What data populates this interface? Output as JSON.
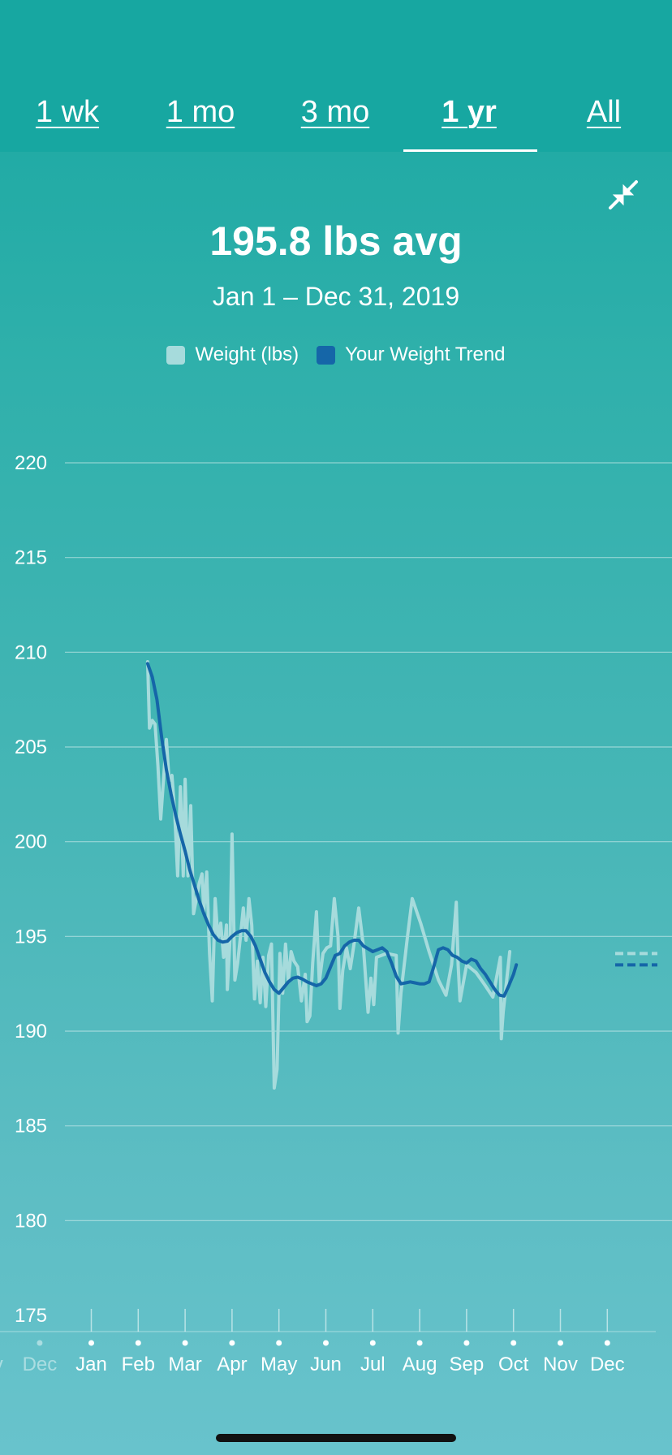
{
  "tabs": [
    {
      "label": "1 wk",
      "active": false
    },
    {
      "label": "1 mo",
      "active": false
    },
    {
      "label": "3 mo",
      "active": false
    },
    {
      "label": "1 yr",
      "active": true
    },
    {
      "label": "All",
      "active": false
    }
  ],
  "header": {
    "title": "195.8 lbs avg",
    "subtitle": "Jan 1 – Dec 31, 2019",
    "collapse_icon": "collapse-arrows-icon"
  },
  "legend": [
    {
      "label": "Weight (lbs)",
      "color": "#a6dbdc"
    },
    {
      "label": "Your Weight Trend",
      "color": "#1566a8"
    }
  ],
  "chart_data": {
    "type": "line",
    "ylim": [
      175,
      220
    ],
    "yticks": [
      220,
      215,
      210,
      205,
      200,
      195,
      190,
      185,
      180,
      175
    ],
    "xticks": [
      {
        "label": "ov",
        "x": -1.1,
        "faded": true
      },
      {
        "label": "Dec",
        "x": -0.1,
        "faded": true
      },
      {
        "label": "Jan",
        "x": 1,
        "faded": false
      },
      {
        "label": "Feb",
        "x": 2,
        "faded": false
      },
      {
        "label": "Mar",
        "x": 3,
        "faded": false
      },
      {
        "label": "Apr",
        "x": 4,
        "faded": false
      },
      {
        "label": "May",
        "x": 5,
        "faded": false
      },
      {
        "label": "Jun",
        "x": 6,
        "faded": false
      },
      {
        "label": "Jul",
        "x": 7,
        "faded": false
      },
      {
        "label": "Aug",
        "x": 8,
        "faded": false
      },
      {
        "label": "Sep",
        "x": 9,
        "faded": false
      },
      {
        "label": "Oct",
        "x": 10,
        "faded": false
      },
      {
        "label": "Nov",
        "x": 11,
        "faded": false
      },
      {
        "label": "Dec",
        "x": 12,
        "faded": false
      }
    ],
    "series": [
      {
        "name": "Weight (lbs)",
        "color": "#a6dbdc",
        "points": [
          [
            2.2,
            209.5
          ],
          [
            2.24,
            206
          ],
          [
            2.3,
            206.4
          ],
          [
            2.36,
            206.2
          ],
          [
            2.42,
            204
          ],
          [
            2.48,
            201.2
          ],
          [
            2.54,
            203.3
          ],
          [
            2.6,
            205.4
          ],
          [
            2.66,
            203.2
          ],
          [
            2.72,
            203.5
          ],
          [
            2.78,
            201.4
          ],
          [
            2.84,
            198.2
          ],
          [
            2.9,
            202.9
          ],
          [
            2.96,
            198.2
          ],
          [
            3.0,
            203.3
          ],
          [
            3.06,
            198.2
          ],
          [
            3.12,
            201.9
          ],
          [
            3.18,
            196.2
          ],
          [
            3.24,
            197
          ],
          [
            3.3,
            197.8
          ],
          [
            3.36,
            198.3
          ],
          [
            3.4,
            196.3
          ],
          [
            3.46,
            198.4
          ],
          [
            3.52,
            194.1
          ],
          [
            3.58,
            191.6
          ],
          [
            3.64,
            197
          ],
          [
            3.7,
            194.9
          ],
          [
            3.76,
            195.7
          ],
          [
            3.82,
            193.9
          ],
          [
            3.88,
            195.6
          ],
          [
            3.9,
            192.2
          ],
          [
            3.96,
            195
          ],
          [
            4.0,
            200.4
          ],
          [
            4.06,
            192.7
          ],
          [
            4.12,
            193.6
          ],
          [
            4.18,
            195
          ],
          [
            4.24,
            196.5
          ],
          [
            4.3,
            194.8
          ],
          [
            4.36,
            197
          ],
          [
            4.42,
            195.6
          ],
          [
            4.48,
            191.7
          ],
          [
            4.54,
            193.7
          ],
          [
            4.6,
            191.5
          ],
          [
            4.66,
            193.9
          ],
          [
            4.72,
            191.3
          ],
          [
            4.78,
            194
          ],
          [
            4.84,
            194.6
          ],
          [
            4.9,
            187
          ],
          [
            4.96,
            188
          ],
          [
            5.02,
            194.1
          ],
          [
            5.08,
            192
          ],
          [
            5.14,
            194.6
          ],
          [
            5.2,
            192.6
          ],
          [
            5.26,
            194.2
          ],
          [
            5.32,
            193.7
          ],
          [
            5.4,
            193.4
          ],
          [
            5.48,
            191.6
          ],
          [
            5.56,
            193
          ],
          [
            5.6,
            190.5
          ],
          [
            5.66,
            190.8
          ],
          [
            5.72,
            193.6
          ],
          [
            5.8,
            196.3
          ],
          [
            5.86,
            192.6
          ],
          [
            5.94,
            194.1
          ],
          [
            6.02,
            194.4
          ],
          [
            6.1,
            194.5
          ],
          [
            6.18,
            197
          ],
          [
            6.26,
            195
          ],
          [
            6.3,
            191.2
          ],
          [
            6.36,
            193.2
          ],
          [
            6.44,
            194.4
          ],
          [
            6.52,
            193.3
          ],
          [
            6.6,
            194.6
          ],
          [
            6.7,
            196.5
          ],
          [
            6.8,
            194.5
          ],
          [
            6.9,
            191
          ],
          [
            6.96,
            192.8
          ],
          [
            7.02,
            191.4
          ],
          [
            7.08,
            193.9
          ],
          [
            7.3,
            194.1
          ],
          [
            7.5,
            194
          ],
          [
            7.54,
            189.9
          ],
          [
            7.6,
            192
          ],
          [
            7.74,
            195
          ],
          [
            7.84,
            197
          ],
          [
            8.02,
            195.7
          ],
          [
            8.2,
            194.2
          ],
          [
            8.4,
            192.7
          ],
          [
            8.56,
            191.9
          ],
          [
            8.68,
            193.5
          ],
          [
            8.78,
            196.8
          ],
          [
            8.82,
            193.5
          ],
          [
            8.86,
            191.6
          ],
          [
            9.0,
            193.5
          ],
          [
            9.2,
            193.1
          ],
          [
            9.4,
            192.4
          ],
          [
            9.56,
            191.8
          ],
          [
            9.72,
            193.9
          ],
          [
            9.74,
            189.6
          ],
          [
            9.78,
            191
          ],
          [
            9.92,
            194.2
          ]
        ]
      },
      {
        "name": "Your Weight Trend",
        "color": "#1566a8",
        "points": [
          [
            2.2,
            209.4
          ],
          [
            2.3,
            208.7
          ],
          [
            2.4,
            207.5
          ],
          [
            2.5,
            205.5
          ],
          [
            2.6,
            203.8
          ],
          [
            2.7,
            202.5
          ],
          [
            2.8,
            201.4
          ],
          [
            2.9,
            200.4
          ],
          [
            3.0,
            199.5
          ],
          [
            3.1,
            198.5
          ],
          [
            3.2,
            197.7
          ],
          [
            3.3,
            196.9
          ],
          [
            3.4,
            196.2
          ],
          [
            3.5,
            195.6
          ],
          [
            3.6,
            195.1
          ],
          [
            3.7,
            194.8
          ],
          [
            3.8,
            194.7
          ],
          [
            3.9,
            194.75
          ],
          [
            4.0,
            195
          ],
          [
            4.1,
            195.2
          ],
          [
            4.2,
            195.3
          ],
          [
            4.3,
            195.3
          ],
          [
            4.4,
            195
          ],
          [
            4.5,
            194.5
          ],
          [
            4.6,
            193.8
          ],
          [
            4.7,
            193.1
          ],
          [
            4.8,
            192.6
          ],
          [
            4.9,
            192.2
          ],
          [
            5.0,
            192
          ],
          [
            5.1,
            192.3
          ],
          [
            5.2,
            192.6
          ],
          [
            5.3,
            192.8
          ],
          [
            5.4,
            192.85
          ],
          [
            5.5,
            192.75
          ],
          [
            5.6,
            192.6
          ],
          [
            5.7,
            192.5
          ],
          [
            5.8,
            192.4
          ],
          [
            5.9,
            192.5
          ],
          [
            6.0,
            192.8
          ],
          [
            6.1,
            193.4
          ],
          [
            6.2,
            194
          ],
          [
            6.3,
            194.1
          ],
          [
            6.4,
            194.5
          ],
          [
            6.5,
            194.7
          ],
          [
            6.6,
            194.8
          ],
          [
            6.7,
            194.8
          ],
          [
            6.8,
            194.5
          ],
          [
            6.9,
            194.35
          ],
          [
            7.0,
            194.2
          ],
          [
            7.1,
            194.3
          ],
          [
            7.2,
            194.4
          ],
          [
            7.3,
            194.2
          ],
          [
            7.4,
            193.6
          ],
          [
            7.5,
            192.9
          ],
          [
            7.6,
            192.5
          ],
          [
            7.7,
            192.55
          ],
          [
            7.8,
            192.6
          ],
          [
            7.9,
            192.55
          ],
          [
            8.0,
            192.5
          ],
          [
            8.1,
            192.5
          ],
          [
            8.2,
            192.6
          ],
          [
            8.3,
            193.4
          ],
          [
            8.4,
            194.3
          ],
          [
            8.5,
            194.4
          ],
          [
            8.6,
            194.3
          ],
          [
            8.7,
            194.0
          ],
          [
            8.8,
            193.9
          ],
          [
            8.9,
            193.7
          ],
          [
            9.0,
            193.6
          ],
          [
            9.1,
            193.8
          ],
          [
            9.2,
            193.7
          ],
          [
            9.3,
            193.3
          ],
          [
            9.4,
            193
          ],
          [
            9.5,
            192.6
          ],
          [
            9.6,
            192.2
          ],
          [
            9.7,
            191.9
          ],
          [
            9.8,
            191.85
          ],
          [
            9.9,
            192.4
          ],
          [
            10.0,
            193.0
          ],
          [
            10.06,
            193.5
          ]
        ]
      }
    ],
    "projection": [
      {
        "series": "Weight (lbs)",
        "y": 194.1
      },
      {
        "series": "Your Weight Trend",
        "y": 193.5
      }
    ]
  }
}
